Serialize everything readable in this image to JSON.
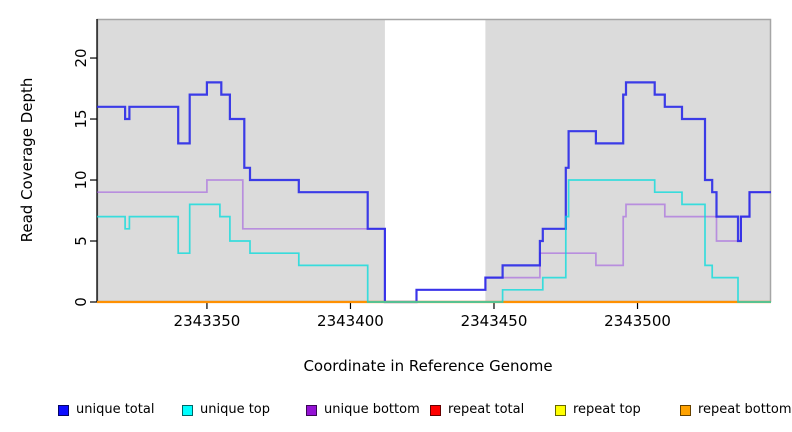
{
  "chart_data": {
    "type": "line",
    "subtype": "step-coverage-plot",
    "title": "",
    "xlabel": "Coordinate in Reference Genome",
    "ylabel": "Read Coverage Depth",
    "xlim": [
      2343311.7,
      2343546.5
    ],
    "ylim": [
      0,
      23.2
    ],
    "x_ticks": [
      2343350,
      2343400,
      2343450,
      2343500
    ],
    "y_ticks": [
      0,
      5,
      10,
      15,
      20
    ],
    "grid": false,
    "shaded_regions": [
      [
        2343311.7,
        2343412
      ],
      [
        2343447,
        2343546.5
      ]
    ],
    "white_gap_region": [
      2343412,
      2343447
    ],
    "x_end": 2343546.5,
    "series": [
      {
        "id": "repeat_total",
        "name": "repeat total",
        "color": "#dd1111",
        "steps": [
          [
            2343311.7,
            0
          ]
        ]
      },
      {
        "id": "repeat_top",
        "name": "repeat top",
        "color": "#ffff00",
        "steps": [
          [
            2343311.7,
            0
          ]
        ]
      },
      {
        "id": "unique_bottom",
        "name": "unique bottom",
        "color": "#9b4fe0",
        "steps": [
          [
            2343311.7,
            9
          ],
          [
            2343350,
            10
          ],
          [
            2343362.5,
            6
          ],
          [
            2343412,
            0
          ],
          [
            2343423,
            1
          ],
          [
            2343447,
            2
          ],
          [
            2343466,
            4
          ],
          [
            2343485.5,
            3
          ],
          [
            2343495,
            7
          ],
          [
            2343496,
            8
          ],
          [
            2343509.5,
            7
          ],
          [
            2343527.5,
            5
          ],
          [
            2343536,
            7
          ],
          [
            2343539,
            9
          ]
        ]
      },
      {
        "id": "unique_total",
        "name": "unique total",
        "color": "#2424e8",
        "steps": [
          [
            2343311.7,
            16
          ],
          [
            2343321.5,
            15
          ],
          [
            2343323,
            16
          ],
          [
            2343340,
            13
          ],
          [
            2343344,
            17
          ],
          [
            2343350,
            18
          ],
          [
            2343355,
            17
          ],
          [
            2343358,
            15
          ],
          [
            2343363,
            11
          ],
          [
            2343365,
            10
          ],
          [
            2343382,
            9
          ],
          [
            2343406,
            6
          ],
          [
            2343412,
            0
          ],
          [
            2343423,
            1
          ],
          [
            2343447,
            2
          ],
          [
            2343453,
            3
          ],
          [
            2343466,
            5
          ],
          [
            2343467,
            6
          ],
          [
            2343475,
            11
          ],
          [
            2343476,
            14
          ],
          [
            2343485.5,
            13
          ],
          [
            2343495,
            17
          ],
          [
            2343496,
            18
          ],
          [
            2343506,
            17
          ],
          [
            2343509.5,
            16
          ],
          [
            2343515.5,
            15
          ],
          [
            2343523.5,
            10
          ],
          [
            2343526,
            9
          ],
          [
            2343527.5,
            7
          ],
          [
            2343535,
            5
          ],
          [
            2343536,
            7
          ],
          [
            2343539,
            9
          ]
        ]
      },
      {
        "id": "repeat_bottom",
        "name": "repeat bottom",
        "color": "#ff8c00",
        "steps": [
          [
            2343311.7,
            0
          ]
        ]
      },
      {
        "id": "unique_top",
        "name": "unique top",
        "color": "#00dcdc",
        "steps": [
          [
            2343311.7,
            7
          ],
          [
            2343321.5,
            6
          ],
          [
            2343323,
            7
          ],
          [
            2343340,
            4
          ],
          [
            2343344,
            8
          ],
          [
            2343354.5,
            7
          ],
          [
            2343358,
            5
          ],
          [
            2343365,
            4
          ],
          [
            2343382,
            3
          ],
          [
            2343406,
            0
          ],
          [
            2343453,
            1
          ],
          [
            2343467,
            2
          ],
          [
            2343475,
            7
          ],
          [
            2343476,
            10
          ],
          [
            2343506,
            9
          ],
          [
            2343515.5,
            8
          ],
          [
            2343523.5,
            3
          ],
          [
            2343526,
            2
          ],
          [
            2343535,
            0
          ]
        ]
      }
    ],
    "legend": [
      {
        "label": "unique total",
        "color": "#0d0dff"
      },
      {
        "label": "unique top",
        "color": "#00ffff"
      },
      {
        "label": "unique bottom",
        "color": "#9412d4"
      },
      {
        "label": "repeat total",
        "color": "#ff0000"
      },
      {
        "label": "repeat top",
        "color": "#ffff00"
      },
      {
        "label": "repeat bottom",
        "color": "#ffa200"
      }
    ],
    "legend_position": "bottom"
  },
  "colors": {
    "panel_background": "#dbdbdb",
    "plot_box_border": "#a6a6a6",
    "axis": "#000000"
  }
}
